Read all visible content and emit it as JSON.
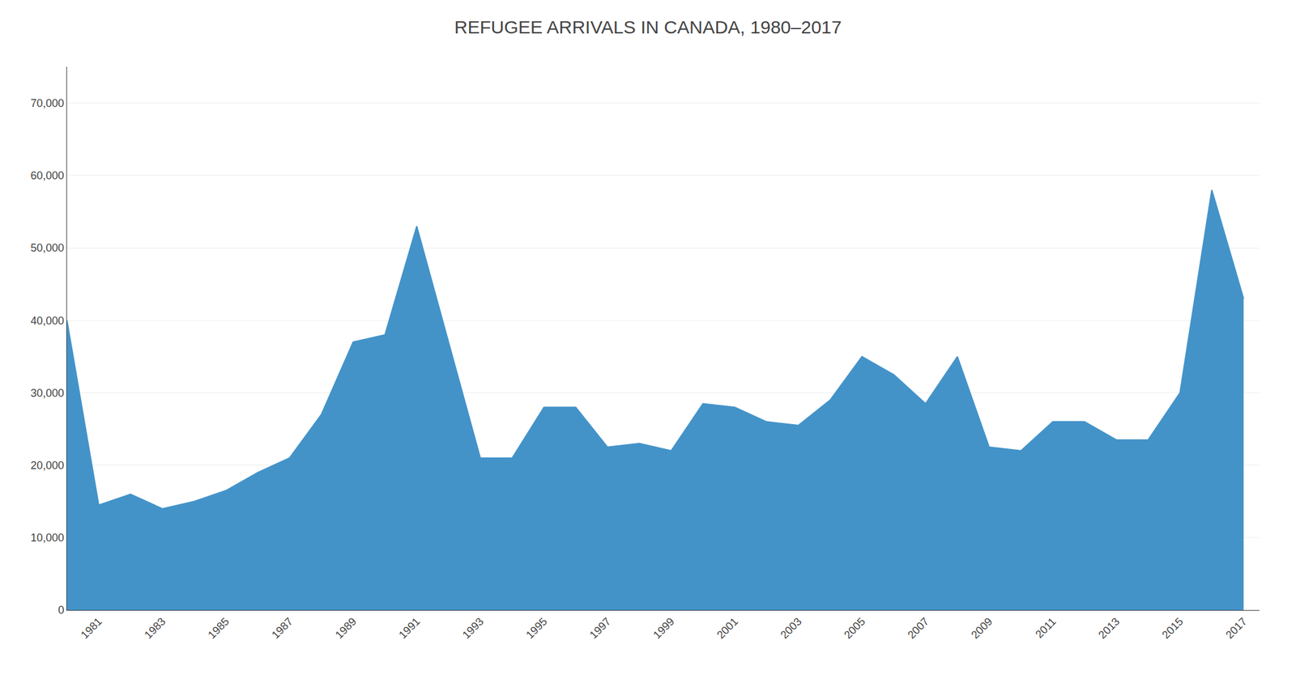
{
  "chart_data": {
    "type": "area",
    "title": "REFUGEE ARRIVALS IN CANADA, 1980–2017",
    "x": [
      1980,
      1981,
      1982,
      1983,
      1984,
      1985,
      1986,
      1987,
      1988,
      1989,
      1990,
      1991,
      1992,
      1993,
      1994,
      1995,
      1996,
      1997,
      1998,
      1999,
      2000,
      2001,
      2002,
      2003,
      2004,
      2005,
      2006,
      2007,
      2008,
      2009,
      2010,
      2011,
      2012,
      2013,
      2014,
      2015,
      2016,
      2017
    ],
    "values": [
      40000,
      14500,
      16000,
      14000,
      15000,
      16500,
      19000,
      21000,
      27000,
      37000,
      38000,
      53000,
      37000,
      21000,
      21000,
      28000,
      28000,
      22500,
      23000,
      22000,
      28500,
      28000,
      26000,
      25500,
      29000,
      35000,
      32500,
      28500,
      35000,
      22500,
      22000,
      26000,
      26000,
      23500,
      23500,
      30000,
      58000,
      43000
    ],
    "color": "#4393c9",
    "xlim": [
      1980,
      2017.5
    ],
    "xticks": [
      1981,
      1983,
      1985,
      1987,
      1989,
      1991,
      1993,
      1995,
      1997,
      1999,
      2001,
      2003,
      2005,
      2007,
      2009,
      2011,
      2013,
      2015,
      2017
    ],
    "ylim": [
      0,
      75000
    ],
    "yticks": [
      0,
      {
        "value": 10000,
        "label": "10,000"
      },
      {
        "value": 20000,
        "label": "20,000"
      },
      {
        "value": 30000,
        "label": "30,000"
      },
      {
        "value": 40000,
        "label": "40,000"
      },
      {
        "value": 50000,
        "label": "50,000"
      },
      {
        "value": 60000,
        "label": "60,000"
      },
      {
        "value": 70000,
        "label": "70,000"
      }
    ],
    "grid": "y"
  }
}
